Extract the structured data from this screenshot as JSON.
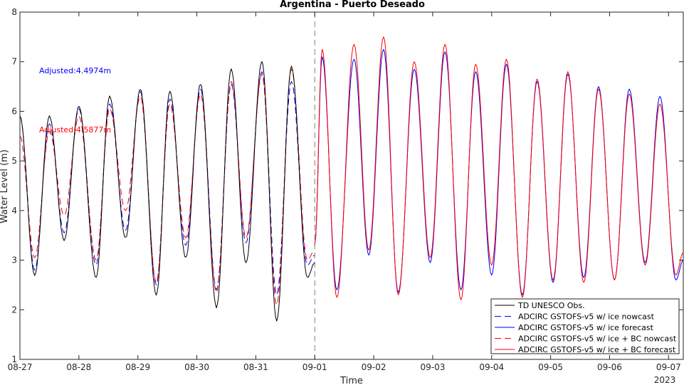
{
  "chart_data": {
    "type": "line",
    "title": "Argentina - Puerto Deseado",
    "xlabel": "Time",
    "ylabel": "Water Level (m)",
    "ylim": [
      1,
      8
    ],
    "yticks": [
      1,
      2,
      3,
      4,
      5,
      6,
      7,
      8
    ],
    "x_range": [
      "2023-08-27T00:00",
      "2023-09-07T06:00"
    ],
    "xtick_labels": [
      "08-27",
      "08-28",
      "08-29",
      "08-30",
      "08-31",
      "09-01",
      "09-02",
      "09-03",
      "09-04",
      "09-05",
      "09-06",
      "09-07"
    ],
    "x_year_label": "2023",
    "nowcast_forecast_divider": "2023-09-01T00:00",
    "grid": false,
    "legend_position": "bottom-right",
    "annotations": [
      {
        "text": "Adjusted:4.4974m",
        "color": "#0000ff",
        "position": "upper-left"
      },
      {
        "text": "Adjusted:4.5877m",
        "color": "#ff0000",
        "position": "left"
      }
    ],
    "series": [
      {
        "name": "TD UNESCO Obs.",
        "color": "#000000",
        "style": "solid",
        "period": "nowcast",
        "extrema": [
          [
            "2023-08-27T00:00",
            5.9
          ],
          [
            "2023-08-27T06:00",
            2.7
          ],
          [
            "2023-08-27T12:00",
            5.9
          ],
          [
            "2023-08-27T18:00",
            3.4
          ],
          [
            "2023-08-28T00:00",
            6.1
          ],
          [
            "2023-08-28T07:00",
            2.65
          ],
          [
            "2023-08-28T12:30",
            6.3
          ],
          [
            "2023-08-28T19:00",
            3.45
          ],
          [
            "2023-08-29T01:00",
            6.45
          ],
          [
            "2023-08-29T07:30",
            2.3
          ],
          [
            "2023-08-29T13:00",
            6.4
          ],
          [
            "2023-08-29T19:30",
            3.05
          ],
          [
            "2023-08-30T01:30",
            6.55
          ],
          [
            "2023-08-30T08:00",
            2.05
          ],
          [
            "2023-08-30T14:00",
            6.85
          ],
          [
            "2023-08-30T20:00",
            2.95
          ],
          [
            "2023-08-31T02:30",
            7.0
          ],
          [
            "2023-08-31T08:30",
            1.78
          ],
          [
            "2023-08-31T14:30",
            6.9
          ],
          [
            "2023-08-31T21:00",
            2.65
          ],
          [
            "2023-09-01T00:00",
            2.95
          ]
        ]
      },
      {
        "name": "ADCIRC GSTOFS-v5 w/ ice nowcast",
        "color": "#0000ff",
        "style": "dashed",
        "period": "nowcast",
        "extrema": [
          [
            "2023-08-27T00:00",
            5.9
          ],
          [
            "2023-08-27T06:00",
            2.8
          ],
          [
            "2023-08-27T12:00",
            5.75
          ],
          [
            "2023-08-27T18:00",
            3.55
          ],
          [
            "2023-08-28T00:00",
            6.05
          ],
          [
            "2023-08-28T07:00",
            2.9
          ],
          [
            "2023-08-28T12:30",
            6.15
          ],
          [
            "2023-08-28T19:00",
            3.6
          ],
          [
            "2023-08-29T01:00",
            6.4
          ],
          [
            "2023-08-29T07:30",
            2.5
          ],
          [
            "2023-08-29T13:00",
            6.25
          ],
          [
            "2023-08-29T19:30",
            3.3
          ],
          [
            "2023-08-30T01:30",
            6.45
          ],
          [
            "2023-08-30T08:00",
            2.4
          ],
          [
            "2023-08-30T14:00",
            6.55
          ],
          [
            "2023-08-30T20:00",
            3.35
          ],
          [
            "2023-08-31T02:30",
            6.8
          ],
          [
            "2023-08-31T08:30",
            2.3
          ],
          [
            "2023-08-31T14:30",
            6.6
          ],
          [
            "2023-08-31T21:00",
            2.9
          ],
          [
            "2023-09-01T00:00",
            3.1
          ]
        ]
      },
      {
        "name": "ADCIRC GSTOFS-v5 w/ ice forecast",
        "color": "#0000ff",
        "style": "solid",
        "period": "forecast",
        "extrema": [
          [
            "2023-09-01T00:00",
            3.3
          ],
          [
            "2023-09-01T03:00",
            7.1
          ],
          [
            "2023-09-01T09:00",
            2.4
          ],
          [
            "2023-09-01T16:00",
            7.05
          ],
          [
            "2023-09-01T22:00",
            3.1
          ],
          [
            "2023-09-02T04:00",
            7.25
          ],
          [
            "2023-09-02T10:00",
            2.35
          ],
          [
            "2023-09-02T16:30",
            6.85
          ],
          [
            "2023-09-02T23:00",
            2.95
          ],
          [
            "2023-09-03T05:00",
            7.2
          ],
          [
            "2023-09-03T11:30",
            2.4
          ],
          [
            "2023-09-03T17:30",
            6.8
          ],
          [
            "2023-09-04T00:00",
            2.7
          ],
          [
            "2023-09-04T06:00",
            6.95
          ],
          [
            "2023-09-04T12:30",
            2.3
          ],
          [
            "2023-09-04T18:30",
            6.6
          ],
          [
            "2023-09-05T01:00",
            2.55
          ],
          [
            "2023-09-05T07:00",
            6.75
          ],
          [
            "2023-09-05T13:30",
            2.65
          ],
          [
            "2023-09-05T19:30",
            6.5
          ],
          [
            "2023-09-06T02:00",
            2.6
          ],
          [
            "2023-09-06T08:00",
            6.45
          ],
          [
            "2023-09-06T14:30",
            2.95
          ],
          [
            "2023-09-06T20:30",
            6.3
          ],
          [
            "2023-09-07T03:00",
            2.6
          ],
          [
            "2023-09-07T06:00",
            3.0
          ]
        ]
      },
      {
        "name": "ADCIRC GSTOFS-v5 w/ ice + BC nowcast",
        "color": "#ff0000",
        "style": "dashed",
        "period": "nowcast",
        "extrema": [
          [
            "2023-08-27T00:00",
            5.5
          ],
          [
            "2023-08-27T06:00",
            3.05
          ],
          [
            "2023-08-27T12:00",
            5.6
          ],
          [
            "2023-08-27T18:00",
            3.9
          ],
          [
            "2023-08-28T00:00",
            5.9
          ],
          [
            "2023-08-28T07:00",
            3.0
          ],
          [
            "2023-08-28T12:30",
            6.05
          ],
          [
            "2023-08-28T19:00",
            4.0
          ],
          [
            "2023-08-29T01:00",
            6.3
          ],
          [
            "2023-08-29T07:30",
            2.55
          ],
          [
            "2023-08-29T13:00",
            6.15
          ],
          [
            "2023-08-29T19:30",
            3.45
          ],
          [
            "2023-08-30T01:30",
            6.35
          ],
          [
            "2023-08-30T08:00",
            2.35
          ],
          [
            "2023-08-30T14:00",
            6.6
          ],
          [
            "2023-08-30T20:00",
            3.45
          ],
          [
            "2023-08-31T02:30",
            6.75
          ],
          [
            "2023-08-31T08:30",
            2.1
          ],
          [
            "2023-08-31T14:30",
            6.85
          ],
          [
            "2023-08-31T21:00",
            3.0
          ],
          [
            "2023-09-01T00:00",
            3.2
          ]
        ]
      },
      {
        "name": "ADCIRC GSTOFS-v5 w/ ice + BC forecast",
        "color": "#ff0000",
        "style": "solid",
        "period": "forecast",
        "extrema": [
          [
            "2023-09-01T00:00",
            3.3
          ],
          [
            "2023-09-01T03:00",
            7.25
          ],
          [
            "2023-09-01T09:00",
            2.25
          ],
          [
            "2023-09-01T16:00",
            7.35
          ],
          [
            "2023-09-01T22:00",
            3.2
          ],
          [
            "2023-09-02T04:00",
            7.5
          ],
          [
            "2023-09-02T10:00",
            2.3
          ],
          [
            "2023-09-02T16:30",
            7.0
          ],
          [
            "2023-09-02T23:00",
            3.05
          ],
          [
            "2023-09-03T05:00",
            7.35
          ],
          [
            "2023-09-03T11:30",
            2.2
          ],
          [
            "2023-09-03T17:30",
            6.95
          ],
          [
            "2023-09-04T00:00",
            2.9
          ],
          [
            "2023-09-04T06:00",
            7.05
          ],
          [
            "2023-09-04T12:30",
            2.25
          ],
          [
            "2023-09-04T18:30",
            6.65
          ],
          [
            "2023-09-05T01:00",
            2.6
          ],
          [
            "2023-09-05T07:00",
            6.8
          ],
          [
            "2023-09-05T13:30",
            2.55
          ],
          [
            "2023-09-05T19:30",
            6.45
          ],
          [
            "2023-09-06T02:00",
            2.6
          ],
          [
            "2023-09-06T08:00",
            6.35
          ],
          [
            "2023-09-06T14:30",
            2.9
          ],
          [
            "2023-09-06T20:30",
            6.15
          ],
          [
            "2023-09-07T03:00",
            2.7
          ],
          [
            "2023-09-07T06:00",
            3.15
          ]
        ]
      }
    ]
  }
}
